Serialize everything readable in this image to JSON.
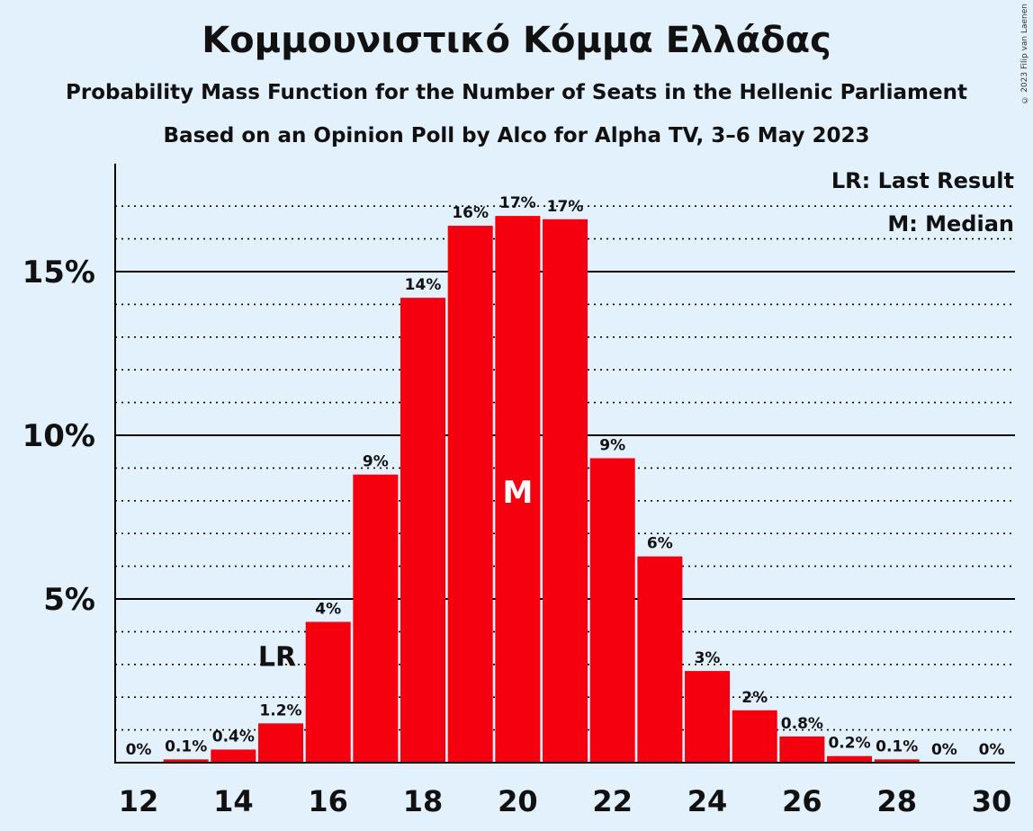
{
  "title": "Κομμουνιστικό Κόμμα Ελλάδας",
  "subtitle": "Probability Mass Function for the Number of Seats in the Hellenic Parliament",
  "source": "Based on an Opinion Poll by Alco for Alpha TV, 3–6 May 2023",
  "copyright": "© 2023 Filip van Laenen",
  "legend": {
    "last_result": "LR: Last Result",
    "median": "M: Median"
  },
  "markers": {
    "last_result_label": "LR",
    "median_label": "M"
  },
  "colors": {
    "bar": "#f5000f",
    "background": "#e3f1fd",
    "text": "#111111"
  },
  "chart_data": {
    "type": "bar",
    "categories": [
      12,
      13,
      14,
      15,
      16,
      17,
      18,
      19,
      20,
      21,
      22,
      23,
      24,
      25,
      26,
      27,
      28,
      29,
      30
    ],
    "values": [
      0,
      0.1,
      0.4,
      1.2,
      4.3,
      8.8,
      14.2,
      16.4,
      16.7,
      16.6,
      9.3,
      6.3,
      2.8,
      1.6,
      0.8,
      0.2,
      0.1,
      0,
      0
    ],
    "data_labels": [
      "0%",
      "0.1%",
      "0.4%",
      "1.2%",
      "4%",
      "9%",
      "14%",
      "16%",
      "17%",
      "17%",
      "9%",
      "6%",
      "3%",
      "2%",
      "0.8%",
      "0.2%",
      "0.1%",
      "0%",
      "0%"
    ],
    "x_ticks": [
      "12",
      "14",
      "16",
      "18",
      "20",
      "22",
      "24",
      "26",
      "28",
      "30"
    ],
    "y_ticks": [
      "5%",
      "10%",
      "15%"
    ],
    "ylim": [
      0,
      18.3
    ],
    "last_result_seat": 15,
    "median_seat": 20,
    "xlabel": "",
    "ylabel": ""
  }
}
